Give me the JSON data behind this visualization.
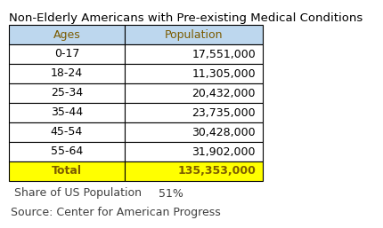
{
  "title": "Non-Elderly Americans with Pre-existing Medical Conditions",
  "header": [
    "Ages",
    "Population"
  ],
  "rows": [
    [
      "0-17",
      "17,551,000"
    ],
    [
      "18-24",
      "11,305,000"
    ],
    [
      "25-34",
      "20,432,000"
    ],
    [
      "35-44",
      "23,735,000"
    ],
    [
      "45-54",
      "30,428,000"
    ],
    [
      "55-64",
      "31,902,000"
    ]
  ],
  "total_row": [
    "Total",
    "135,353,000"
  ],
  "share_row": [
    "Share of US Population",
    "51%"
  ],
  "source_text": "Source: Center for American Progress",
  "header_bg": "#BDD7EE",
  "header_text": "#7B5B00",
  "total_bg": "#FFFF00",
  "total_text": "#7B5B00",
  "row_bg": "#FFFFFF",
  "row_text": "#000000",
  "border_color": "#000000",
  "title_color": "#000000",
  "share_color": "#404040",
  "source_color": "#404040",
  "title_fontsize": 9.5,
  "cell_fontsize": 9.0,
  "share_fontsize": 9.0,
  "source_fontsize": 9.0
}
